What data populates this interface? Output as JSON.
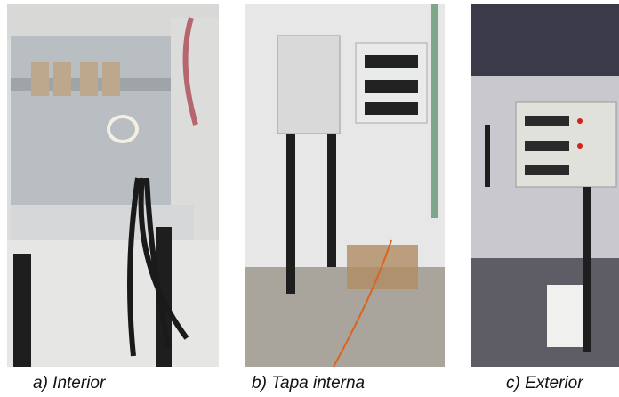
{
  "panels": [
    {
      "caption": "a) Interior"
    },
    {
      "caption": "b) Tapa interna"
    },
    {
      "caption": "c) Exterior"
    }
  ]
}
